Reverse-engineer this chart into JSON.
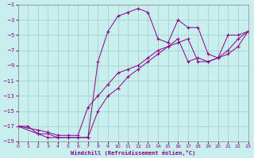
{
  "xlabel": "Windchill (Refroidissement éolien,°C)",
  "bg_color": "#c8eeee",
  "line_color": "#880088",
  "grid_color": "#a0cccc",
  "xlim": [
    0,
    23
  ],
  "ylim": [
    -19,
    -1
  ],
  "xticks": [
    0,
    1,
    2,
    3,
    4,
    5,
    6,
    7,
    8,
    9,
    10,
    11,
    12,
    13,
    14,
    15,
    16,
    17,
    18,
    19,
    20,
    21,
    22,
    23
  ],
  "yticks": [
    -19,
    -17,
    -15,
    -13,
    -11,
    -9,
    -7,
    -5,
    -3,
    -1
  ],
  "line1_x": [
    0,
    1,
    2,
    3,
    4,
    5,
    6,
    7,
    8,
    9,
    10,
    11,
    12,
    13,
    14,
    15,
    16,
    17,
    18,
    19,
    20,
    21,
    22,
    23
  ],
  "line1_y": [
    -17,
    -17,
    -18,
    -18.5,
    -18.5,
    -18.5,
    -18.5,
    -18.5,
    -8.5,
    -4.5,
    -2.5,
    -2,
    -1.5,
    -2,
    -5.5,
    -6,
    -3,
    -4,
    -4,
    -7.5,
    -8,
    -5,
    -5,
    -4.5
  ],
  "line2_x": [
    0,
    2,
    3,
    4,
    5,
    6,
    7,
    8,
    9,
    10,
    11,
    12,
    13,
    14,
    15,
    16,
    17,
    18,
    19,
    20,
    21,
    22,
    23
  ],
  "line2_y": [
    -17,
    -17.5,
    -17.8,
    -18.2,
    -18.2,
    -18.2,
    -14.5,
    -13.0,
    -11.5,
    -10,
    -9.5,
    -9,
    -8,
    -7,
    -6.5,
    -5.5,
    -8.5,
    -8.0,
    -8.5,
    -8,
    -7,
    -5.5,
    -4.5
  ],
  "line3_x": [
    0,
    2,
    3,
    4,
    5,
    6,
    7,
    8,
    9,
    10,
    11,
    12,
    13,
    14,
    15,
    16,
    17,
    18,
    19,
    20,
    21,
    22,
    23
  ],
  "line3_y": [
    -17,
    -18,
    -18,
    -18.5,
    -18.5,
    -18.5,
    -18.5,
    -15,
    -13,
    -12,
    -10.5,
    -9.5,
    -8.5,
    -7.5,
    -6.5,
    -6,
    -5.5,
    -8.5,
    -8.5,
    -8,
    -7.5,
    -6.5,
    -4.5
  ]
}
